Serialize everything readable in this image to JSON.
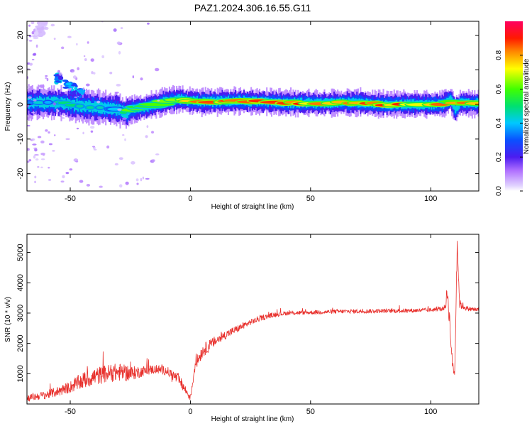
{
  "title": "PAZ1.2024.306.16.55.G11",
  "chart_data": [
    {
      "type": "heatmap",
      "xlabel": "Height of straight line (km)",
      "ylabel": "Frequency (Hz)",
      "xlim": [
        -68,
        120
      ],
      "ylim": [
        -25,
        24
      ],
      "xticks": [
        -50,
        0,
        50,
        100
      ],
      "yticks": [
        20,
        10,
        0,
        -10,
        -20
      ],
      "colorbar": {
        "label": "Normalized spectral amplitude",
        "range": [
          0,
          1
        ],
        "ticks": [
          "0.0",
          "0.2",
          "0.4",
          "0.6",
          "0.8"
        ],
        "tick_values": [
          0,
          0.2,
          0.4,
          0.6,
          0.8
        ],
        "colors": [
          "#ffffff",
          "#c9a9ff",
          "#7a2cff",
          "#1e1ee6",
          "#00c8ff",
          "#00e070",
          "#40ff00",
          "#ffff00",
          "#ff7a00",
          "#ff0000",
          "#ff0050"
        ]
      },
      "ridge": {
        "x": [
          -68,
          -60,
          -55,
          -50,
          -45,
          -40,
          -35,
          -30,
          -27,
          -25,
          -20,
          -15,
          -10,
          -5,
          0,
          5,
          10,
          20,
          30,
          40,
          50,
          60,
          70,
          80,
          90,
          100,
          105,
          108,
          110,
          112,
          115,
          120
        ],
        "freq": [
          0.5,
          0.5,
          0.5,
          0,
          -0.5,
          -0.8,
          -1,
          -1.5,
          -2.5,
          -1.5,
          -1,
          0,
          1,
          1.5,
          1,
          0.8,
          0.8,
          1,
          0.8,
          0.5,
          0.3,
          0.5,
          0.5,
          0,
          0,
          0,
          0,
          1.5,
          -1.5,
          0.5,
          0.3,
          0.3
        ],
        "amplitude": [
          0.4,
          0.45,
          0.45,
          0.5,
          0.45,
          0.45,
          0.4,
          0.45,
          0.5,
          0.6,
          0.65,
          0.7,
          0.72,
          0.75,
          0.78,
          0.8,
          0.82,
          0.85,
          0.85,
          0.85,
          0.85,
          0.86,
          0.86,
          0.86,
          0.86,
          0.85,
          0.85,
          0.65,
          0.5,
          0.75,
          0.82,
          0.82
        ]
      },
      "secondary_features": [
        {
          "x": [
            -56,
            -45
          ],
          "freq": [
            8,
            3
          ],
          "amplitude": 0.35
        },
        {
          "x": [
            -64,
            -60
          ],
          "freq": [
            20,
            24
          ],
          "amplitude": 0.05
        }
      ]
    },
    {
      "type": "line",
      "xlabel": "Height of straight line (km)",
      "ylabel": "SNR (10 * v/v)",
      "xlim": [
        -68,
        120
      ],
      "ylim": [
        0,
        5600
      ],
      "xticks": [
        -50,
        0,
        50,
        100
      ],
      "yticks": [
        1000,
        2000,
        3000,
        4000,
        5000
      ],
      "color": "#e8302c",
      "series_envelope": {
        "x": [
          -68,
          -60,
          -55,
          -50,
          -45,
          -40,
          -35,
          -30,
          -25,
          -20,
          -15,
          -10,
          -5,
          -2,
          0,
          2,
          5,
          10,
          15,
          20,
          25,
          30,
          35,
          40,
          50,
          60,
          70,
          80,
          90,
          100,
          105,
          106,
          107,
          108,
          109,
          110,
          111,
          112,
          115,
          120
        ],
        "mean": [
          200,
          300,
          420,
          560,
          760,
          900,
          1000,
          1050,
          1000,
          1080,
          1150,
          1100,
          820,
          450,
          200,
          1300,
          1750,
          2050,
          2300,
          2500,
          2700,
          2850,
          2950,
          3000,
          3020,
          3050,
          3060,
          3070,
          3080,
          3100,
          3150,
          3200,
          3700,
          2600,
          1300,
          1000,
          5400,
          3300,
          3150,
          3100
        ],
        "noise": [
          120,
          140,
          170,
          200,
          280,
          300,
          300,
          300,
          250,
          180,
          150,
          150,
          200,
          150,
          100,
          200,
          220,
          180,
          140,
          120,
          100,
          90,
          80,
          70,
          70,
          70,
          70,
          70,
          70,
          70,
          70,
          100,
          400,
          300,
          200,
          150,
          300,
          150,
          80,
          80
        ]
      }
    }
  ]
}
